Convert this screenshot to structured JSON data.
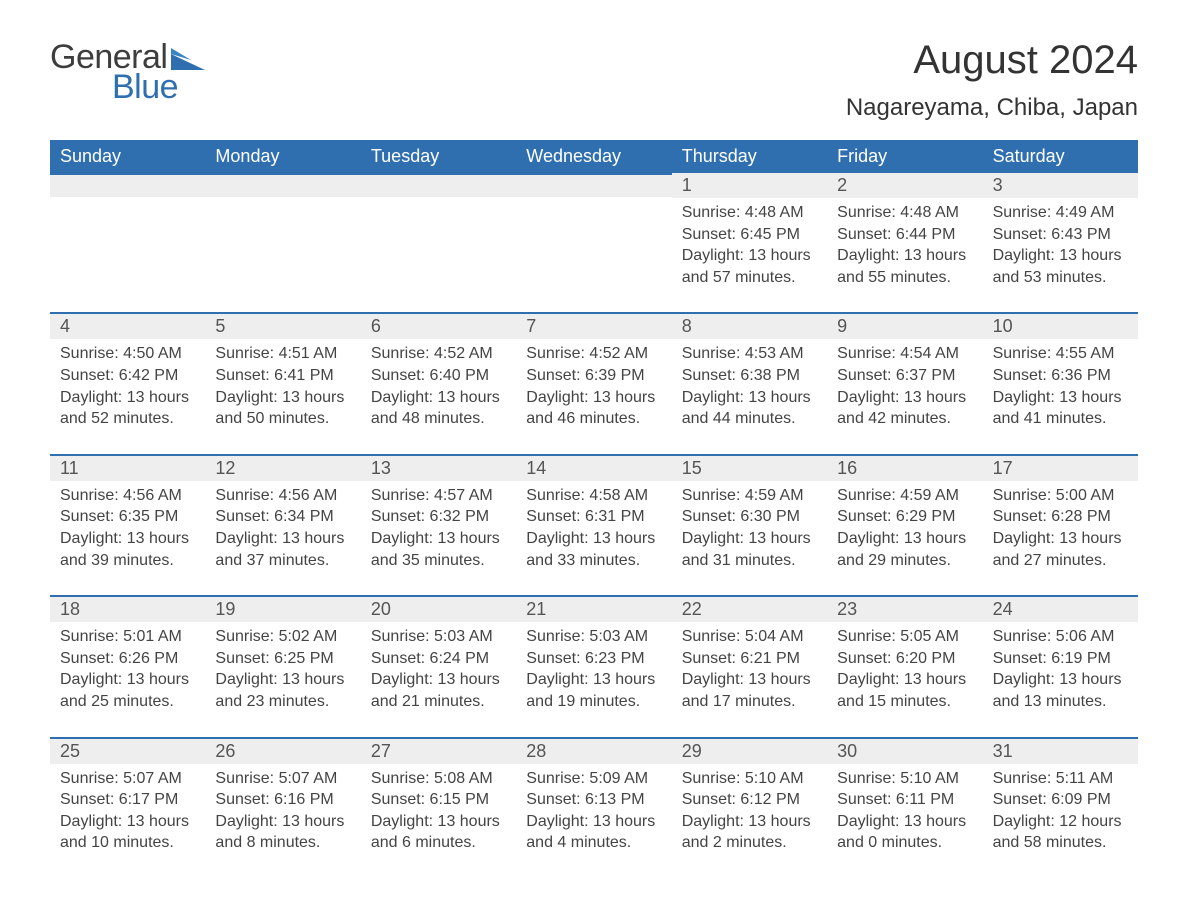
{
  "logo": {
    "text1": "General",
    "text2": "Blue",
    "flag_color": "#2f6fb0"
  },
  "title": "August 2024",
  "location": "Nagareyama, Chiba, Japan",
  "colors": {
    "header_bg": "#2f6fb0",
    "header_text": "#ffffff",
    "daybar_bg": "#eeeeee",
    "daybar_border": "#2f6fb0",
    "body_text": "#3b3b3b",
    "background": "#ffffff"
  },
  "day_headers": [
    "Sunday",
    "Monday",
    "Tuesday",
    "Wednesday",
    "Thursday",
    "Friday",
    "Saturday"
  ],
  "weeks": [
    [
      {
        "day": "",
        "sunrise": "",
        "sunset": "",
        "daylight": ""
      },
      {
        "day": "",
        "sunrise": "",
        "sunset": "",
        "daylight": ""
      },
      {
        "day": "",
        "sunrise": "",
        "sunset": "",
        "daylight": ""
      },
      {
        "day": "",
        "sunrise": "",
        "sunset": "",
        "daylight": ""
      },
      {
        "day": "1",
        "sunrise": "Sunrise: 4:48 AM",
        "sunset": "Sunset: 6:45 PM",
        "daylight": "Daylight: 13 hours and 57 minutes."
      },
      {
        "day": "2",
        "sunrise": "Sunrise: 4:48 AM",
        "sunset": "Sunset: 6:44 PM",
        "daylight": "Daylight: 13 hours and 55 minutes."
      },
      {
        "day": "3",
        "sunrise": "Sunrise: 4:49 AM",
        "sunset": "Sunset: 6:43 PM",
        "daylight": "Daylight: 13 hours and 53 minutes."
      }
    ],
    [
      {
        "day": "4",
        "sunrise": "Sunrise: 4:50 AM",
        "sunset": "Sunset: 6:42 PM",
        "daylight": "Daylight: 13 hours and 52 minutes."
      },
      {
        "day": "5",
        "sunrise": "Sunrise: 4:51 AM",
        "sunset": "Sunset: 6:41 PM",
        "daylight": "Daylight: 13 hours and 50 minutes."
      },
      {
        "day": "6",
        "sunrise": "Sunrise: 4:52 AM",
        "sunset": "Sunset: 6:40 PM",
        "daylight": "Daylight: 13 hours and 48 minutes."
      },
      {
        "day": "7",
        "sunrise": "Sunrise: 4:52 AM",
        "sunset": "Sunset: 6:39 PM",
        "daylight": "Daylight: 13 hours and 46 minutes."
      },
      {
        "day": "8",
        "sunrise": "Sunrise: 4:53 AM",
        "sunset": "Sunset: 6:38 PM",
        "daylight": "Daylight: 13 hours and 44 minutes."
      },
      {
        "day": "9",
        "sunrise": "Sunrise: 4:54 AM",
        "sunset": "Sunset: 6:37 PM",
        "daylight": "Daylight: 13 hours and 42 minutes."
      },
      {
        "day": "10",
        "sunrise": "Sunrise: 4:55 AM",
        "sunset": "Sunset: 6:36 PM",
        "daylight": "Daylight: 13 hours and 41 minutes."
      }
    ],
    [
      {
        "day": "11",
        "sunrise": "Sunrise: 4:56 AM",
        "sunset": "Sunset: 6:35 PM",
        "daylight": "Daylight: 13 hours and 39 minutes."
      },
      {
        "day": "12",
        "sunrise": "Sunrise: 4:56 AM",
        "sunset": "Sunset: 6:34 PM",
        "daylight": "Daylight: 13 hours and 37 minutes."
      },
      {
        "day": "13",
        "sunrise": "Sunrise: 4:57 AM",
        "sunset": "Sunset: 6:32 PM",
        "daylight": "Daylight: 13 hours and 35 minutes."
      },
      {
        "day": "14",
        "sunrise": "Sunrise: 4:58 AM",
        "sunset": "Sunset: 6:31 PM",
        "daylight": "Daylight: 13 hours and 33 minutes."
      },
      {
        "day": "15",
        "sunrise": "Sunrise: 4:59 AM",
        "sunset": "Sunset: 6:30 PM",
        "daylight": "Daylight: 13 hours and 31 minutes."
      },
      {
        "day": "16",
        "sunrise": "Sunrise: 4:59 AM",
        "sunset": "Sunset: 6:29 PM",
        "daylight": "Daylight: 13 hours and 29 minutes."
      },
      {
        "day": "17",
        "sunrise": "Sunrise: 5:00 AM",
        "sunset": "Sunset: 6:28 PM",
        "daylight": "Daylight: 13 hours and 27 minutes."
      }
    ],
    [
      {
        "day": "18",
        "sunrise": "Sunrise: 5:01 AM",
        "sunset": "Sunset: 6:26 PM",
        "daylight": "Daylight: 13 hours and 25 minutes."
      },
      {
        "day": "19",
        "sunrise": "Sunrise: 5:02 AM",
        "sunset": "Sunset: 6:25 PM",
        "daylight": "Daylight: 13 hours and 23 minutes."
      },
      {
        "day": "20",
        "sunrise": "Sunrise: 5:03 AM",
        "sunset": "Sunset: 6:24 PM",
        "daylight": "Daylight: 13 hours and 21 minutes."
      },
      {
        "day": "21",
        "sunrise": "Sunrise: 5:03 AM",
        "sunset": "Sunset: 6:23 PM",
        "daylight": "Daylight: 13 hours and 19 minutes."
      },
      {
        "day": "22",
        "sunrise": "Sunrise: 5:04 AM",
        "sunset": "Sunset: 6:21 PM",
        "daylight": "Daylight: 13 hours and 17 minutes."
      },
      {
        "day": "23",
        "sunrise": "Sunrise: 5:05 AM",
        "sunset": "Sunset: 6:20 PM",
        "daylight": "Daylight: 13 hours and 15 minutes."
      },
      {
        "day": "24",
        "sunrise": "Sunrise: 5:06 AM",
        "sunset": "Sunset: 6:19 PM",
        "daylight": "Daylight: 13 hours and 13 minutes."
      }
    ],
    [
      {
        "day": "25",
        "sunrise": "Sunrise: 5:07 AM",
        "sunset": "Sunset: 6:17 PM",
        "daylight": "Daylight: 13 hours and 10 minutes."
      },
      {
        "day": "26",
        "sunrise": "Sunrise: 5:07 AM",
        "sunset": "Sunset: 6:16 PM",
        "daylight": "Daylight: 13 hours and 8 minutes."
      },
      {
        "day": "27",
        "sunrise": "Sunrise: 5:08 AM",
        "sunset": "Sunset: 6:15 PM",
        "daylight": "Daylight: 13 hours and 6 minutes."
      },
      {
        "day": "28",
        "sunrise": "Sunrise: 5:09 AM",
        "sunset": "Sunset: 6:13 PM",
        "daylight": "Daylight: 13 hours and 4 minutes."
      },
      {
        "day": "29",
        "sunrise": "Sunrise: 5:10 AM",
        "sunset": "Sunset: 6:12 PM",
        "daylight": "Daylight: 13 hours and 2 minutes."
      },
      {
        "day": "30",
        "sunrise": "Sunrise: 5:10 AM",
        "sunset": "Sunset: 6:11 PM",
        "daylight": "Daylight: 13 hours and 0 minutes."
      },
      {
        "day": "31",
        "sunrise": "Sunrise: 5:11 AM",
        "sunset": "Sunset: 6:09 PM",
        "daylight": "Daylight: 12 hours and 58 minutes."
      }
    ]
  ]
}
